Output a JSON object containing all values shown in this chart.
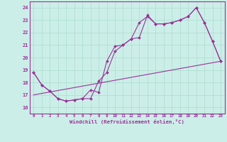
{
  "xlabel": "Windchill (Refroidissement éolien,°C)",
  "background_color": "#cceee8",
  "grid_color": "#aaddcc",
  "line_color": "#993399",
  "spine_color": "#993399",
  "xlim": [
    -0.5,
    23.5
  ],
  "ylim": [
    15.5,
    24.5
  ],
  "xticks": [
    0,
    1,
    2,
    3,
    4,
    5,
    6,
    7,
    8,
    9,
    10,
    11,
    12,
    13,
    14,
    15,
    16,
    17,
    18,
    19,
    20,
    21,
    22,
    23
  ],
  "yticks": [
    16,
    17,
    18,
    19,
    20,
    21,
    22,
    23,
    24
  ],
  "series1_x": [
    0,
    1,
    2,
    3,
    4,
    5,
    6,
    7,
    8,
    9,
    10,
    11,
    12,
    13,
    14,
    15,
    16,
    17,
    18,
    19,
    20,
    21,
    22,
    23
  ],
  "series1_y": [
    18.8,
    17.8,
    17.3,
    16.7,
    16.5,
    16.6,
    16.7,
    16.7,
    18.1,
    18.8,
    20.5,
    21.0,
    21.5,
    22.8,
    23.3,
    22.7,
    22.7,
    22.8,
    23.0,
    23.3,
    24.0,
    22.8,
    21.3,
    19.7
  ],
  "series2_x": [
    0,
    1,
    2,
    3,
    4,
    5,
    6,
    7,
    8,
    9,
    10,
    11,
    12,
    13,
    14,
    15,
    16,
    17,
    18,
    19,
    20,
    21,
    22,
    23
  ],
  "series2_y": [
    18.8,
    17.8,
    17.3,
    16.7,
    16.5,
    16.6,
    16.7,
    17.4,
    17.2,
    19.7,
    20.9,
    21.0,
    21.5,
    21.6,
    23.4,
    22.7,
    22.7,
    22.8,
    23.0,
    23.3,
    24.0,
    22.8,
    21.3,
    19.7
  ],
  "series3_x": [
    0,
    23
  ],
  "series3_y": [
    17.0,
    19.7
  ]
}
